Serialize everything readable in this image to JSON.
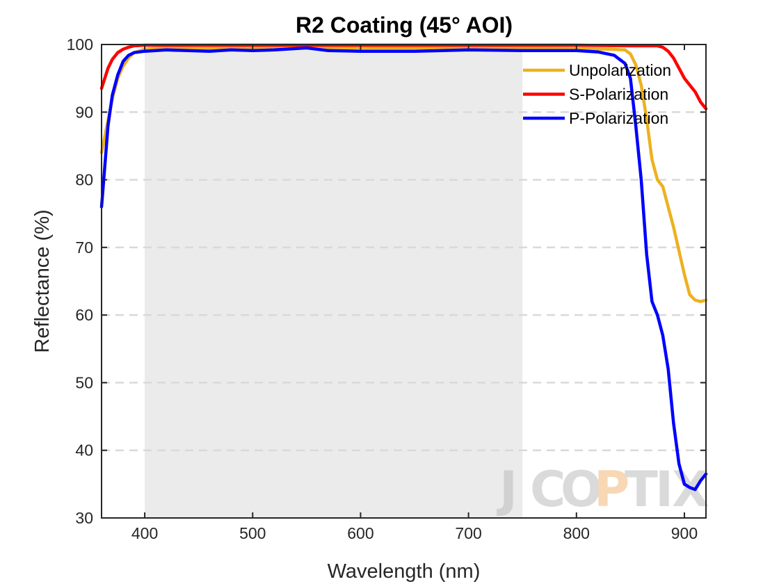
{
  "chart_data": {
    "type": "line",
    "title": "R2 Coating  (45° AOI)",
    "xlabel": "Wavelength (nm)",
    "ylabel": "Reflectance (%)",
    "xlim": [
      360,
      920
    ],
    "ylim": [
      30,
      100
    ],
    "xticks": [
      400,
      500,
      600,
      700,
      800,
      900
    ],
    "yticks": [
      30,
      40,
      50,
      60,
      70,
      80,
      90,
      100
    ],
    "grid": "horizontal dashed",
    "legend_position": "top-right",
    "shaded_band": [
      400,
      750
    ],
    "watermark": "JCOPTIX",
    "series": [
      {
        "name": "Unpolarization",
        "color": "#EDB120",
        "x": [
          360,
          365,
          370,
          375,
          380,
          385,
          390,
          400,
          420,
          450,
          500,
          550,
          600,
          650,
          700,
          750,
          800,
          830,
          845,
          850,
          855,
          860,
          865,
          870,
          875,
          880,
          890,
          900,
          905,
          910,
          915,
          920
        ],
        "y": [
          84,
          88,
          92,
          95,
          96.8,
          98,
          98.8,
          99.3,
          99.5,
          99.4,
          99.5,
          99.6,
          99.5,
          99.5,
          99.5,
          99.5,
          99.4,
          99.3,
          99.2,
          98.6,
          97,
          94,
          89,
          83,
          80,
          79,
          73,
          66,
          63,
          62.2,
          62,
          62.2
        ]
      },
      {
        "name": "S-Polarization",
        "color": "#FF0000",
        "x": [
          360,
          363,
          366,
          370,
          375,
          380,
          385,
          390,
          400,
          450,
          500,
          550,
          600,
          650,
          700,
          750,
          800,
          850,
          875,
          880,
          885,
          890,
          895,
          900,
          905,
          910,
          915,
          920
        ],
        "y": [
          93.5,
          95,
          96.5,
          97.8,
          98.8,
          99.3,
          99.6,
          99.8,
          99.9,
          99.9,
          99.9,
          99.9,
          99.9,
          99.9,
          99.9,
          99.9,
          99.9,
          99.8,
          99.8,
          99.6,
          99,
          98,
          96.5,
          95,
          94,
          93,
          91.5,
          90.5
        ]
      },
      {
        "name": "P-Polarization",
        "color": "#0000FF",
        "x": [
          360,
          363,
          366,
          370,
          375,
          380,
          385,
          390,
          400,
          420,
          440,
          460,
          480,
          500,
          520,
          550,
          570,
          600,
          650,
          700,
          750,
          780,
          800,
          820,
          835,
          845,
          850,
          855,
          860,
          865,
          870,
          875,
          880,
          885,
          890,
          895,
          900,
          905,
          910,
          915,
          920
        ],
        "y": [
          76,
          82,
          88,
          92.5,
          95.5,
          97.5,
          98.4,
          98.8,
          99,
          99.2,
          99.1,
          99,
          99.2,
          99.1,
          99.2,
          99.5,
          99.1,
          99,
          99,
          99.2,
          99.1,
          99.1,
          99.1,
          98.9,
          98.4,
          97.2,
          95,
          88,
          80,
          69,
          62,
          60,
          57,
          52,
          44,
          38,
          35,
          34.5,
          34.2,
          35.5,
          36.5
        ]
      }
    ]
  }
}
